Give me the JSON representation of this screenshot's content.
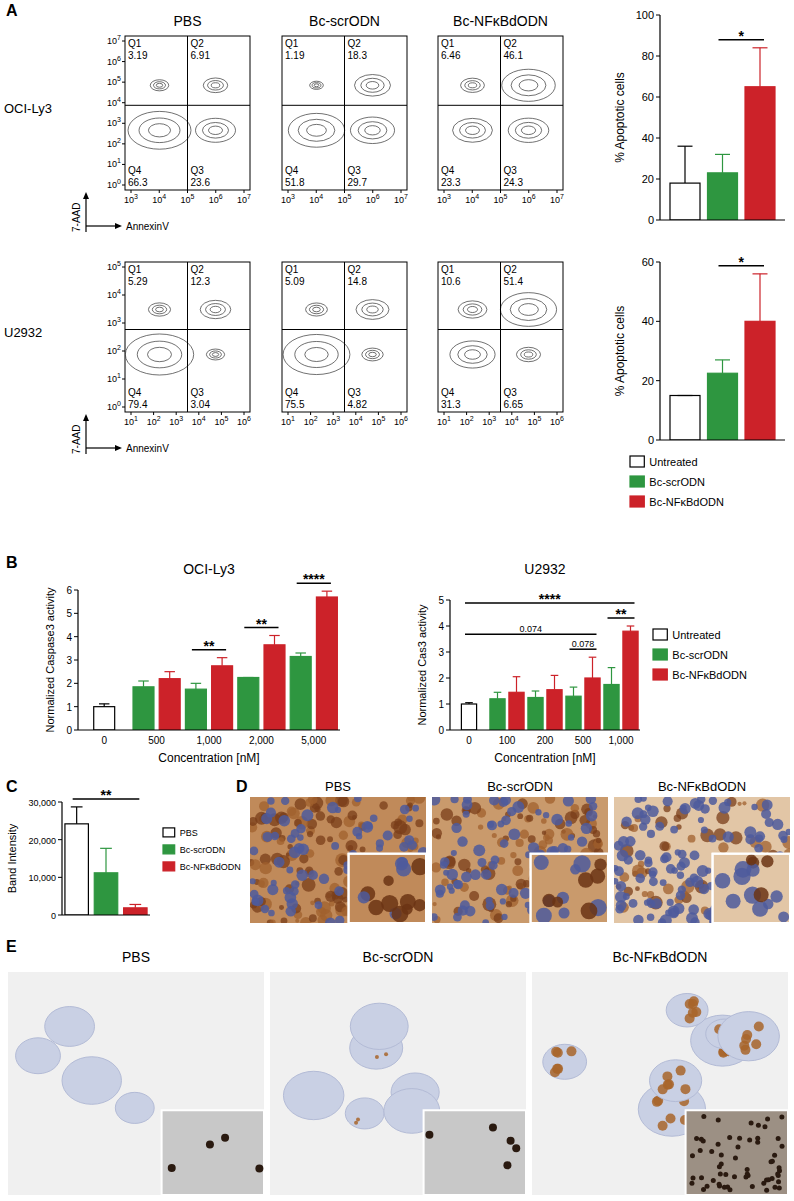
{
  "panel_labels": [
    "A",
    "B",
    "C",
    "D",
    "E"
  ],
  "flow": {
    "columns": [
      "PBS",
      "Bc-scrODN",
      "Bc-NFκBdODN"
    ],
    "x_title": "AnnexinV",
    "y_title": "7-AAD",
    "base": "10",
    "rows": [
      {
        "name": "OCI-Ly3",
        "xticks": [
          3,
          4,
          5,
          6,
          7
        ],
        "yticks": [
          0,
          1,
          2,
          3,
          4,
          5,
          6,
          7
        ],
        "plots": [
          {
            "quadrants": [
              {
                "label": "Q1",
                "value": 3.19
              },
              {
                "label": "Q2",
                "value": 6.91
              },
              {
                "label": "Q4",
                "value": 66.3
              },
              {
                "label": "Q3",
                "value": 23.6
              }
            ]
          },
          {
            "quadrants": [
              {
                "label": "Q1",
                "value": 1.19
              },
              {
                "label": "Q2",
                "value": 18.3
              },
              {
                "label": "Q4",
                "value": 51.8
              },
              {
                "label": "Q3",
                "value": 29.7
              }
            ]
          },
          {
            "quadrants": [
              {
                "label": "Q1",
                "value": 6.46
              },
              {
                "label": "Q2",
                "value": 46.1
              },
              {
                "label": "Q4",
                "value": 23.3
              },
              {
                "label": "Q3",
                "value": 24.3
              }
            ]
          }
        ]
      },
      {
        "name": "U2932",
        "xticks": [
          1,
          2,
          3,
          4,
          5,
          6
        ],
        "yticks": [
          0,
          1,
          2,
          3,
          4,
          5
        ],
        "plots": [
          {
            "quadrants": [
              {
                "label": "Q1",
                "value": 5.29
              },
              {
                "label": "Q2",
                "value": 12.3
              },
              {
                "label": "Q4",
                "value": 79.4
              },
              {
                "label": "Q3",
                "value": 3.04
              }
            ]
          },
          {
            "quadrants": [
              {
                "label": "Q1",
                "value": 5.09
              },
              {
                "label": "Q2",
                "value": 14.8
              },
              {
                "label": "Q4",
                "value": 75.5
              },
              {
                "label": "Q3",
                "value": 4.82
              }
            ]
          },
          {
            "quadrants": [
              {
                "label": "Q1",
                "value": 10.6
              },
              {
                "label": "Q2",
                "value": 51.4
              },
              {
                "label": "Q4",
                "value": 31.3
              },
              {
                "label": "Q3",
                "value": 6.65
              }
            ]
          }
        ]
      }
    ]
  },
  "chart_data": [
    {
      "type": "bar",
      "y_label": "% Apoptotic cells",
      "categories": [
        null
      ],
      "ylim": [
        0,
        100
      ],
      "yticks": [
        0,
        20,
        40,
        60,
        80,
        100
      ],
      "series": [
        {
          "color": "#ffffff",
          "values": [
            18
          ],
          "errors": [
            18
          ]
        },
        {
          "color": "#2e9640",
          "values": [
            23
          ],
          "errors": [
            9
          ]
        },
        {
          "color": "#cc2229",
          "values": [
            65
          ],
          "errors": [
            19
          ]
        }
      ],
      "annotations": [
        {
          "text": "*",
          "from": [
            0,
            1
          ],
          "to": [
            0,
            2
          ]
        }
      ]
    },
    {
      "type": "bar",
      "y_label": "% Apoptotic cells",
      "categories": [
        null
      ],
      "ylim": [
        0,
        60
      ],
      "yticks": [
        0,
        20,
        40,
        60
      ],
      "legend": "bottom",
      "series": [
        {
          "name": "Untreated",
          "color": "#ffffff",
          "values": [
            15
          ],
          "errors": [
            0
          ]
        },
        {
          "name": "Bc-scrODN",
          "color": "#2e9640",
          "values": [
            22.5
          ],
          "errors": [
            4.5
          ]
        },
        {
          "name": "Bc-NFκBdODN",
          "color": "#cc2229",
          "values": [
            40
          ],
          "errors": [
            16
          ]
        }
      ],
      "annotations": [
        {
          "text": "*",
          "from": [
            0,
            1
          ],
          "to": [
            0,
            2
          ]
        }
      ]
    },
    {
      "type": "bar",
      "title": "OCI-Ly3",
      "x_label": "Concentration [nM]",
      "y_label": "Normalized Caspase3 activity",
      "categories": [
        "0",
        "500",
        "1,000",
        "2,000",
        "5,000"
      ],
      "ylim": [
        0,
        6
      ],
      "yticks": [
        0,
        1,
        2,
        3,
        4,
        5,
        6
      ],
      "series": [
        {
          "color": "#ffffff",
          "values": [
            1.0,
            null,
            null,
            null,
            null
          ],
          "errors": [
            0.12,
            null,
            null,
            null,
            null
          ]
        },
        {
          "color": "#2e9640",
          "values": [
            null,
            1.85,
            1.75,
            2.25,
            3.15
          ],
          "errors": [
            null,
            0.25,
            0.25,
            0,
            0.15
          ]
        },
        {
          "color": "#cc2229",
          "values": [
            null,
            2.2,
            2.75,
            3.65,
            5.7
          ],
          "errors": [
            null,
            0.3,
            0.35,
            0.4,
            0.25
          ]
        }
      ],
      "annotations": [
        {
          "text": "**",
          "from": [
            2,
            1
          ],
          "to": [
            2,
            2
          ]
        },
        {
          "text": "**",
          "from": [
            3,
            1
          ],
          "to": [
            3,
            2
          ]
        },
        {
          "text": "****",
          "from": [
            4,
            1
          ],
          "to": [
            4,
            2
          ]
        }
      ]
    },
    {
      "type": "bar",
      "title": "U2932",
      "x_label": "Concentration [nM]",
      "y_label": "Normalized Cas3 activity",
      "categories": [
        "0",
        "100",
        "200",
        "500",
        "1,000"
      ],
      "ylim": [
        0,
        5
      ],
      "yticks": [
        0,
        1,
        2,
        3,
        4,
        5
      ],
      "legend": "right",
      "series": [
        {
          "name": "Untreated",
          "color": "#ffffff",
          "values": [
            1.0,
            null,
            null,
            null,
            null
          ],
          "errors": [
            0.05,
            null,
            null,
            null,
            null
          ]
        },
        {
          "name": "Bc-scrODN",
          "color": "#2e9640",
          "values": [
            null,
            1.2,
            1.25,
            1.3,
            1.75
          ],
          "errors": [
            null,
            0.25,
            0.25,
            0.35,
            0.65
          ]
        },
        {
          "name": "Bc-NFκBdODN",
          "color": "#cc2229",
          "values": [
            null,
            1.45,
            1.55,
            2.0,
            3.8
          ],
          "errors": [
            null,
            0.6,
            0.55,
            0.8,
            0.2
          ]
        }
      ],
      "annotations": [
        {
          "text": "0.078",
          "from": [
            3,
            1
          ],
          "to": [
            3,
            2
          ]
        },
        {
          "text": "**",
          "from": [
            4,
            1
          ],
          "to": [
            4,
            2
          ]
        },
        {
          "text": "0.074",
          "from": [
            0,
            0
          ],
          "to": [
            3,
            2
          ]
        },
        {
          "text": "****",
          "from": [
            0,
            0
          ],
          "to": [
            4,
            2
          ]
        }
      ]
    },
    {
      "type": "bar",
      "y_label": "Band Intensity",
      "categories": [
        null
      ],
      "ylim": [
        0,
        30000
      ],
      "yticks": [
        0,
        {
          "value": 10000,
          "label": "10,000"
        },
        {
          "value": 20000,
          "label": "20,000"
        },
        {
          "value": 30000,
          "label": "30,000"
        }
      ],
      "legend": "right",
      "series": [
        {
          "name": "PBS",
          "color": "#ffffff",
          "values": [
            24200
          ],
          "errors": [
            4500
          ]
        },
        {
          "name": "Bc-scrODN",
          "color": "#2e9640",
          "values": [
            11200
          ],
          "errors": [
            6500
          ]
        },
        {
          "name": "Bc-NFκBdODN",
          "color": "#cc2229",
          "values": [
            1900
          ],
          "errors": [
            900
          ]
        }
      ],
      "annotations": [
        {
          "text": "**",
          "from": [
            0,
            0
          ],
          "to": [
            0,
            2
          ]
        }
      ]
    }
  ],
  "images": {
    "D": [
      "PBS",
      "Bc-scrODN",
      "Bc-NFκBdODN"
    ],
    "E": [
      "PBS",
      "Bc-scrODN",
      "Bc-NFκBdODN"
    ]
  }
}
